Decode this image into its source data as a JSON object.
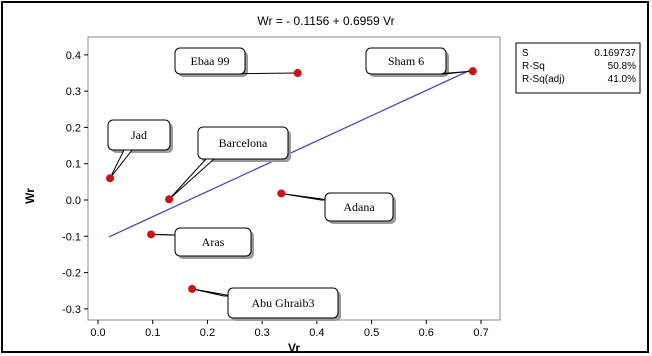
{
  "chart_data": {
    "type": "scatter",
    "title": "Wr = - 0.1156 + 0.6959 Vr",
    "xlabel": "Vr",
    "ylabel": "Wr",
    "xlim": [
      -0.02,
      0.72
    ],
    "ylim": [
      -0.32,
      0.42
    ],
    "xticks": [
      "0.0",
      "0.1",
      "0.2",
      "0.3",
      "0.4",
      "0.5",
      "0.6",
      "0.7"
    ],
    "yticks": [
      "-0.3",
      "-0.2",
      "-0.1",
      "0.0",
      "0.1",
      "0.2",
      "0.3",
      "0.4"
    ],
    "grid": false,
    "points": [
      {
        "label": "Ebaa 99",
        "x": 0.365,
        "y": 0.35
      },
      {
        "label": "Sham 6",
        "x": 0.685,
        "y": 0.355
      },
      {
        "label": "Jad",
        "x": 0.022,
        "y": 0.06
      },
      {
        "label": "Barcelona",
        "x": 0.13,
        "y": 0.002
      },
      {
        "label": "Adana",
        "x": 0.335,
        "y": 0.018
      },
      {
        "label": "Aras",
        "x": 0.097,
        "y": -0.095
      },
      {
        "label": "Abu Ghraib3",
        "x": 0.172,
        "y": -0.245
      }
    ],
    "fit_line": {
      "intercept": -0.1156,
      "slope": 0.6959,
      "x_range": [
        0.02,
        0.685
      ]
    },
    "stats": [
      {
        "name": "S",
        "value": "0.169737"
      },
      {
        "name": "R-Sq",
        "value": "50.8%"
      },
      {
        "name": "R-Sq(adj)",
        "value": "41.0%"
      }
    ],
    "colors": {
      "points": "#d01010",
      "fit_line": "#3b3bd0",
      "axis": "#000000"
    }
  }
}
